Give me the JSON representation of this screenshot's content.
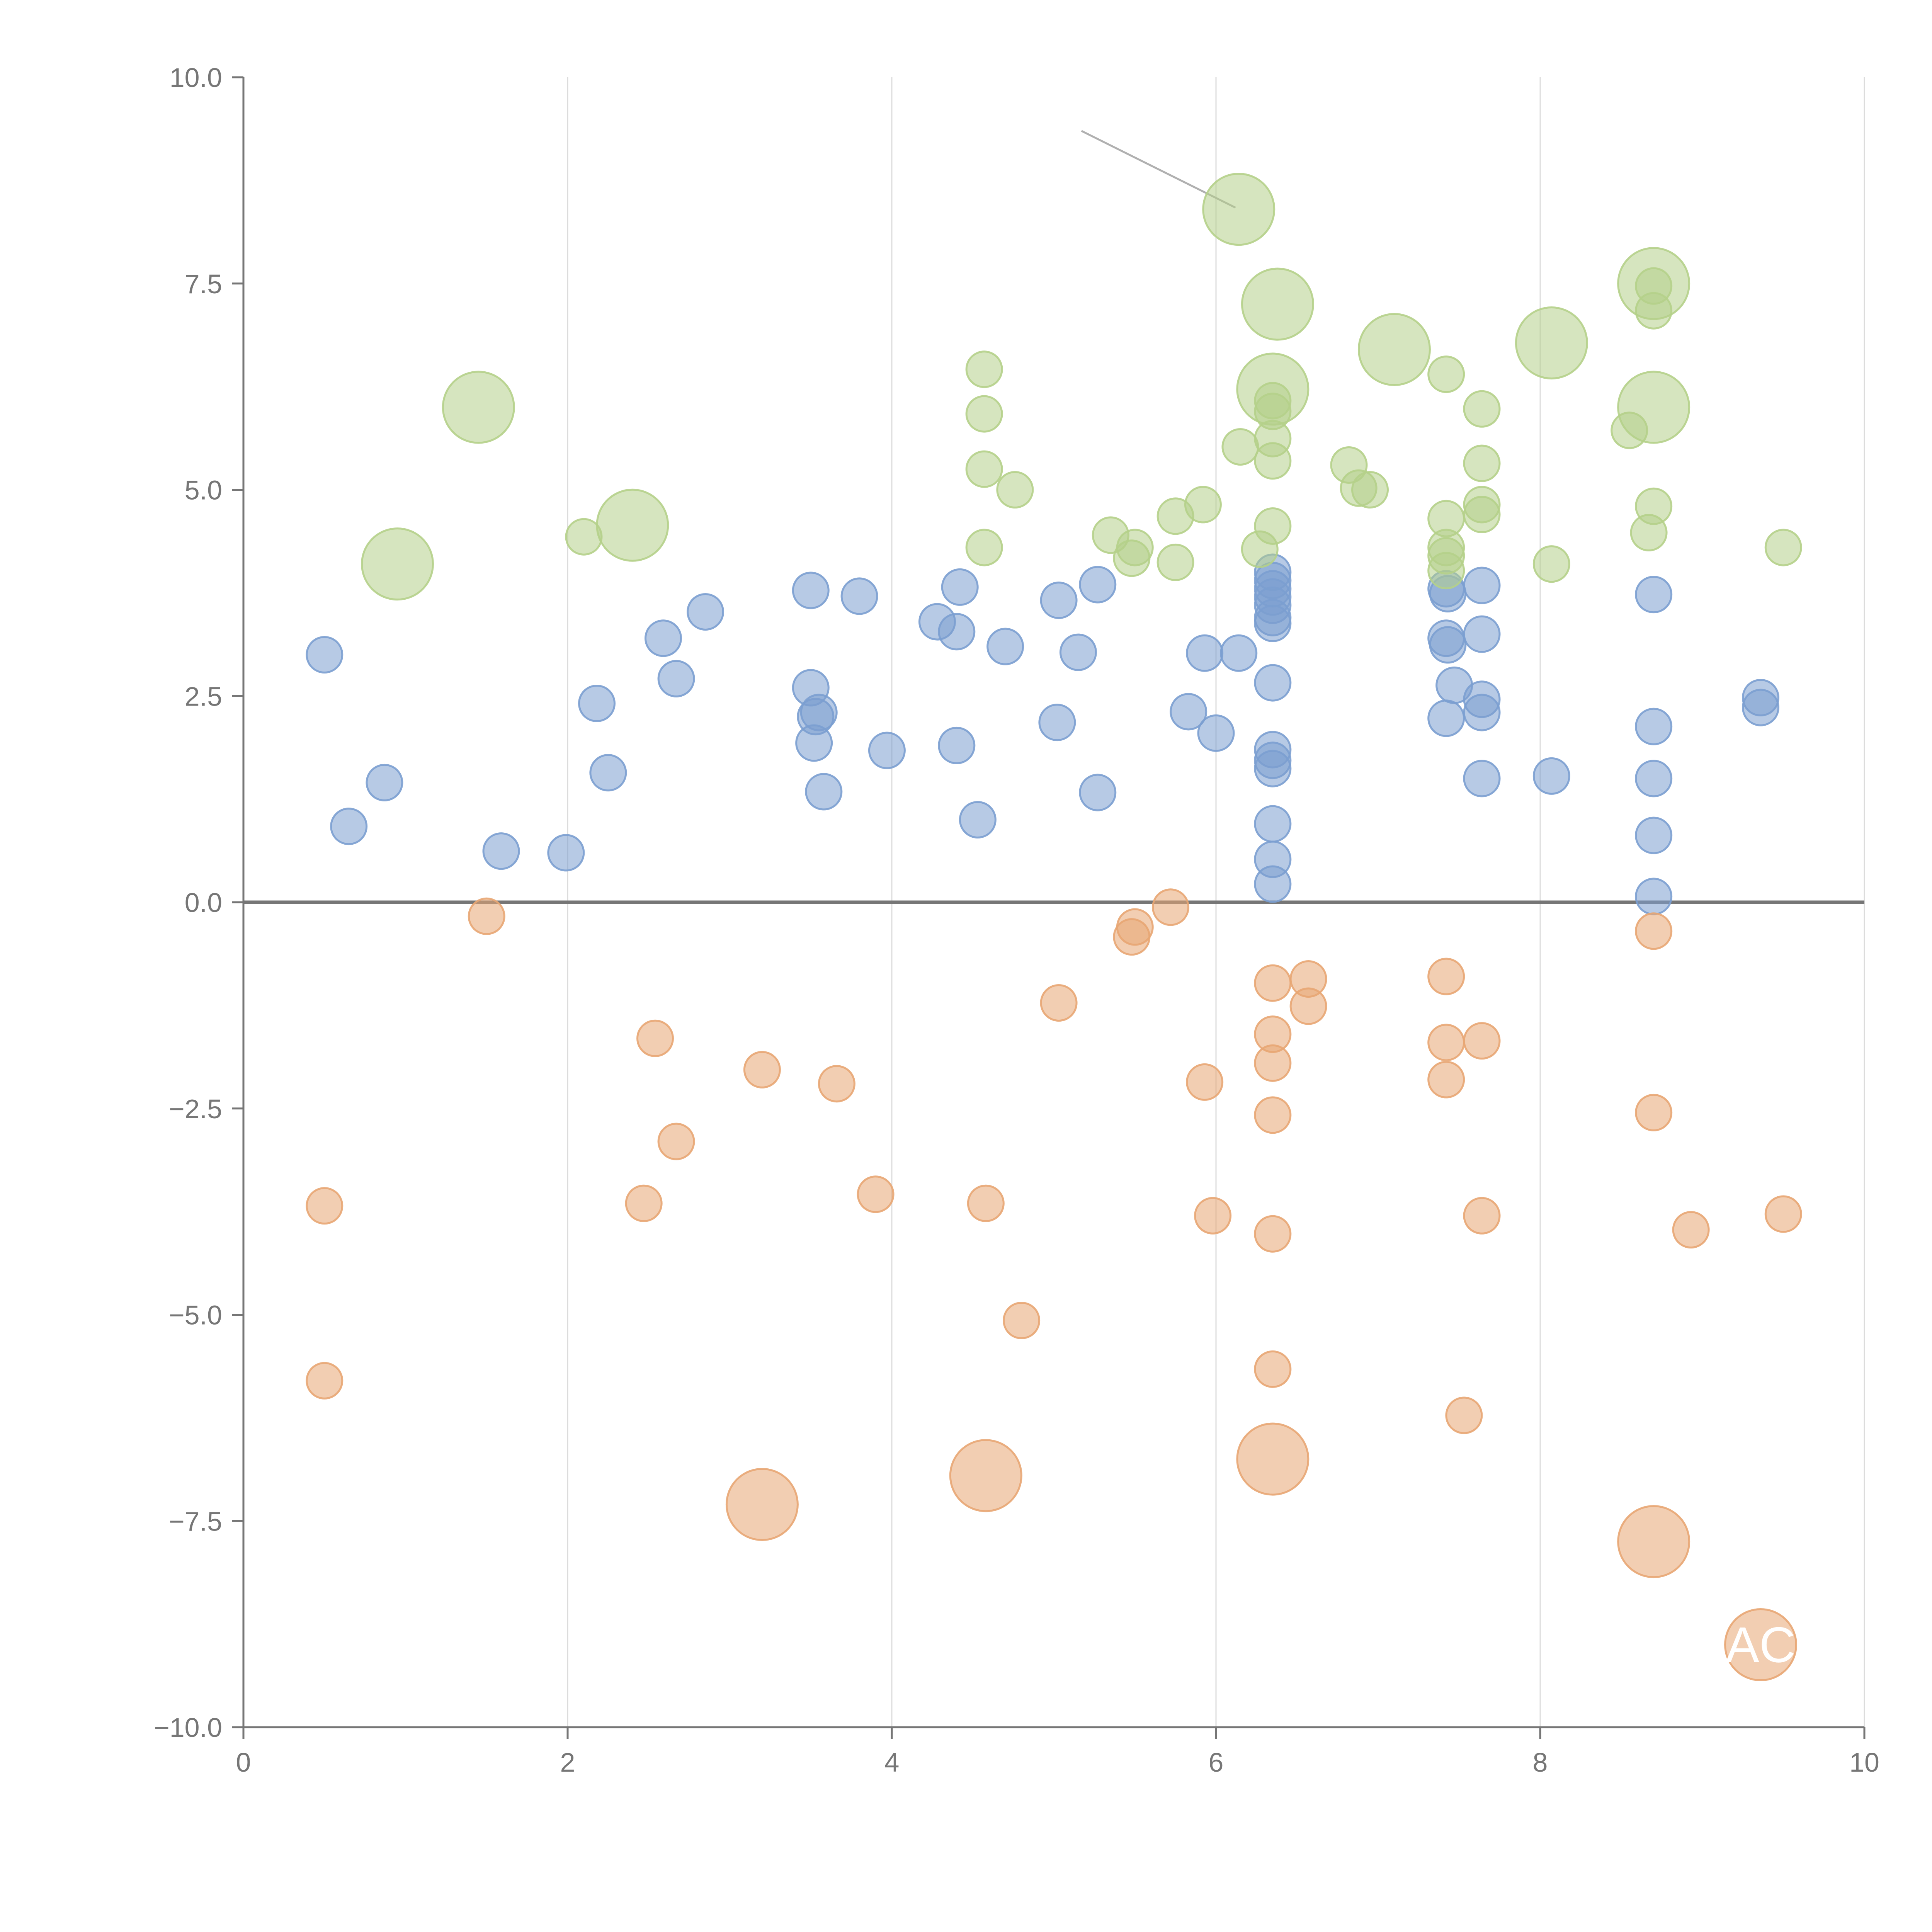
{
  "chart_data": {
    "type": "scatter",
    "title": "",
    "xlabel": "",
    "ylabel": "",
    "xlim": [
      0,
      10
    ],
    "ylim": [
      -10,
      10
    ],
    "x_ticks": [
      0,
      2,
      4,
      6,
      8,
      10
    ],
    "x_tick_labels": [
      "0",
      "2",
      "4",
      "6",
      "8",
      "10"
    ],
    "y_ticks": [
      10,
      7.5,
      5,
      2.5,
      0,
      -2.5,
      -5,
      -7.5,
      -10
    ],
    "y_tick_labels": [
      "10.0",
      "7.5",
      "5.0",
      "2.5",
      "0.0",
      "−2.5",
      "−5.0",
      "−7.5",
      "−10.0"
    ],
    "vertical_gridlines": true,
    "zero_line": true,
    "size_units": "relative (small=1, large=2)",
    "colors": {
      "blue": "#7b9fd0",
      "orange": "#e8a673",
      "green": "#b5d08a"
    },
    "series": [
      {
        "name": "blue",
        "color": "#7b9fd0",
        "points": [
          {
            "x": 0.5,
            "y": 3.0,
            "s": 1
          },
          {
            "x": 0.65,
            "y": 0.92,
            "s": 1
          },
          {
            "x": 0.87,
            "y": 1.45,
            "s": 1
          },
          {
            "x": 1.59,
            "y": 0.62,
            "s": 1
          },
          {
            "x": 1.99,
            "y": 0.6,
            "s": 1
          },
          {
            "x": 2.18,
            "y": 2.41,
            "s": 1
          },
          {
            "x": 2.25,
            "y": 1.57,
            "s": 1
          },
          {
            "x": 2.59,
            "y": 3.2,
            "s": 1
          },
          {
            "x": 2.67,
            "y": 2.71,
            "s": 1
          },
          {
            "x": 2.85,
            "y": 3.52,
            "s": 1
          },
          {
            "x": 3.5,
            "y": 3.78,
            "s": 1
          },
          {
            "x": 3.5,
            "y": 2.6,
            "s": 1
          },
          {
            "x": 3.53,
            "y": 2.25,
            "s": 1
          },
          {
            "x": 3.55,
            "y": 2.3,
            "s": 1
          },
          {
            "x": 3.52,
            "y": 1.93,
            "s": 1
          },
          {
            "x": 3.58,
            "y": 1.34,
            "s": 1
          },
          {
            "x": 3.8,
            "y": 3.71,
            "s": 1
          },
          {
            "x": 3.97,
            "y": 1.84,
            "s": 1
          },
          {
            "x": 4.28,
            "y": 3.4,
            "s": 1
          },
          {
            "x": 4.42,
            "y": 3.82,
            "s": 1
          },
          {
            "x": 4.4,
            "y": 3.28,
            "s": 1
          },
          {
            "x": 4.4,
            "y": 1.9,
            "s": 1
          },
          {
            "x": 4.53,
            "y": 1.0,
            "s": 1
          },
          {
            "x": 4.7,
            "y": 3.1,
            "s": 1
          },
          {
            "x": 5.03,
            "y": 3.66,
            "s": 1
          },
          {
            "x": 5.02,
            "y": 2.18,
            "s": 1
          },
          {
            "x": 5.15,
            "y": 3.03,
            "s": 1
          },
          {
            "x": 5.27,
            "y": 3.85,
            "s": 1
          },
          {
            "x": 5.27,
            "y": 1.33,
            "s": 1
          },
          {
            "x": 5.83,
            "y": 2.31,
            "s": 1
          },
          {
            "x": 5.93,
            "y": 3.02,
            "s": 1
          },
          {
            "x": 6.0,
            "y": 2.05,
            "s": 1
          },
          {
            "x": 6.14,
            "y": 3.02,
            "s": 1
          },
          {
            "x": 6.35,
            "y": 4.0,
            "s": 1
          },
          {
            "x": 6.35,
            "y": 3.9,
            "s": 1
          },
          {
            "x": 6.35,
            "y": 3.8,
            "s": 1
          },
          {
            "x": 6.35,
            "y": 3.7,
            "s": 1
          },
          {
            "x": 6.35,
            "y": 3.6,
            "s": 1
          },
          {
            "x": 6.35,
            "y": 3.45,
            "s": 1
          },
          {
            "x": 6.35,
            "y": 3.38,
            "s": 1
          },
          {
            "x": 6.35,
            "y": 2.66,
            "s": 1
          },
          {
            "x": 6.35,
            "y": 1.85,
            "s": 1
          },
          {
            "x": 6.35,
            "y": 1.72,
            "s": 1
          },
          {
            "x": 6.35,
            "y": 1.62,
            "s": 1
          },
          {
            "x": 6.35,
            "y": 0.95,
            "s": 1
          },
          {
            "x": 6.35,
            "y": 0.52,
            "s": 1
          },
          {
            "x": 6.35,
            "y": 0.22,
            "s": 1
          },
          {
            "x": 7.42,
            "y": 3.8,
            "s": 1
          },
          {
            "x": 7.43,
            "y": 3.74,
            "s": 1
          },
          {
            "x": 7.42,
            "y": 3.2,
            "s": 1
          },
          {
            "x": 7.43,
            "y": 3.12,
            "s": 1
          },
          {
            "x": 7.47,
            "y": 2.63,
            "s": 1
          },
          {
            "x": 7.42,
            "y": 2.23,
            "s": 1
          },
          {
            "x": 7.64,
            "y": 3.84,
            "s": 1
          },
          {
            "x": 7.64,
            "y": 3.25,
            "s": 1
          },
          {
            "x": 7.64,
            "y": 2.46,
            "s": 1
          },
          {
            "x": 7.64,
            "y": 2.3,
            "s": 1
          },
          {
            "x": 7.64,
            "y": 1.5,
            "s": 1
          },
          {
            "x": 8.07,
            "y": 1.53,
            "s": 1
          },
          {
            "x": 8.7,
            "y": 3.73,
            "s": 1
          },
          {
            "x": 8.7,
            "y": 2.13,
            "s": 1
          },
          {
            "x": 8.7,
            "y": 1.5,
            "s": 1
          },
          {
            "x": 8.7,
            "y": 0.81,
            "s": 1
          },
          {
            "x": 8.7,
            "y": 0.07,
            "s": 1
          },
          {
            "x": 9.36,
            "y": 2.48,
            "s": 1
          },
          {
            "x": 9.36,
            "y": 2.36,
            "s": 1
          }
        ]
      },
      {
        "name": "orange",
        "color": "#e8a673",
        "points": [
          {
            "x": 0.5,
            "y": -3.68,
            "s": 1
          },
          {
            "x": 0.5,
            "y": -5.8,
            "s": 1
          },
          {
            "x": 1.5,
            "y": -0.17,
            "s": 1
          },
          {
            "x": 2.47,
            "y": -3.65,
            "s": 1
          },
          {
            "x": 2.54,
            "y": -1.65,
            "s": 1
          },
          {
            "x": 2.67,
            "y": -2.9,
            "s": 1
          },
          {
            "x": 3.2,
            "y": -2.03,
            "s": 1
          },
          {
            "x": 3.2,
            "y": -7.3,
            "s": 2
          },
          {
            "x": 3.66,
            "y": -2.2,
            "s": 1
          },
          {
            "x": 3.9,
            "y": -3.54,
            "s": 1
          },
          {
            "x": 4.58,
            "y": -3.65,
            "s": 1
          },
          {
            "x": 4.58,
            "y": -6.95,
            "s": 2
          },
          {
            "x": 4.8,
            "y": -5.07,
            "s": 1
          },
          {
            "x": 5.03,
            "y": -1.22,
            "s": 1
          },
          {
            "x": 5.48,
            "y": -0.42,
            "s": 1
          },
          {
            "x": 5.5,
            "y": -0.3,
            "s": 1
          },
          {
            "x": 5.72,
            "y": -0.06,
            "s": 1
          },
          {
            "x": 5.93,
            "y": -2.18,
            "s": 1
          },
          {
            "x": 5.98,
            "y": -3.8,
            "s": 1
          },
          {
            "x": 6.35,
            "y": -0.98,
            "s": 1
          },
          {
            "x": 6.35,
            "y": -1.6,
            "s": 1
          },
          {
            "x": 6.35,
            "y": -1.95,
            "s": 1
          },
          {
            "x": 6.35,
            "y": -2.58,
            "s": 1
          },
          {
            "x": 6.35,
            "y": -4.02,
            "s": 1
          },
          {
            "x": 6.35,
            "y": -5.66,
            "s": 1
          },
          {
            "x": 6.35,
            "y": -6.75,
            "s": 2
          },
          {
            "x": 6.57,
            "y": -0.93,
            "s": 1
          },
          {
            "x": 6.57,
            "y": -1.26,
            "s": 1
          },
          {
            "x": 7.42,
            "y": -0.9,
            "s": 1
          },
          {
            "x": 7.42,
            "y": -1.7,
            "s": 1
          },
          {
            "x": 7.42,
            "y": -2.15,
            "s": 1
          },
          {
            "x": 7.53,
            "y": -6.22,
            "s": 1
          },
          {
            "x": 7.64,
            "y": -1.68,
            "s": 1
          },
          {
            "x": 7.64,
            "y": -3.8,
            "s": 1
          },
          {
            "x": 8.7,
            "y": -0.35,
            "s": 1
          },
          {
            "x": 8.7,
            "y": -2.55,
            "s": 1
          },
          {
            "x": 8.7,
            "y": -7.75,
            "s": 2
          },
          {
            "x": 8.93,
            "y": -3.97,
            "s": 1
          },
          {
            "x": 9.36,
            "y": -9.0,
            "s": 2
          },
          {
            "x": 9.5,
            "y": -3.78,
            "s": 1
          }
        ]
      },
      {
        "name": "green",
        "color": "#b5d08a",
        "points": [
          {
            "x": 0.95,
            "y": 4.1,
            "s": 2
          },
          {
            "x": 1.45,
            "y": 6.0,
            "s": 2
          },
          {
            "x": 2.1,
            "y": 4.43,
            "s": 1
          },
          {
            "x": 2.4,
            "y": 4.57,
            "s": 2
          },
          {
            "x": 4.57,
            "y": 6.46,
            "s": 1
          },
          {
            "x": 4.57,
            "y": 5.92,
            "s": 1
          },
          {
            "x": 4.57,
            "y": 5.25,
            "s": 1
          },
          {
            "x": 4.57,
            "y": 4.3,
            "s": 1
          },
          {
            "x": 4.76,
            "y": 5.0,
            "s": 1
          },
          {
            "x": 5.35,
            "y": 4.45,
            "s": 1
          },
          {
            "x": 5.5,
            "y": 4.3,
            "s": 1
          },
          {
            "x": 5.48,
            "y": 4.17,
            "s": 1
          },
          {
            "x": 5.75,
            "y": 4.68,
            "s": 1
          },
          {
            "x": 5.75,
            "y": 4.12,
            "s": 1
          },
          {
            "x": 5.92,
            "y": 4.82,
            "s": 1
          },
          {
            "x": 6.14,
            "y": 8.4,
            "s": 2
          },
          {
            "x": 6.15,
            "y": 5.52,
            "s": 1
          },
          {
            "x": 6.27,
            "y": 4.28,
            "s": 1
          },
          {
            "x": 6.38,
            "y": 7.25,
            "s": 2
          },
          {
            "x": 6.35,
            "y": 6.22,
            "s": 2
          },
          {
            "x": 6.35,
            "y": 6.08,
            "s": 1
          },
          {
            "x": 6.35,
            "y": 5.95,
            "s": 1
          },
          {
            "x": 6.35,
            "y": 5.62,
            "s": 1
          },
          {
            "x": 6.35,
            "y": 5.35,
            "s": 1
          },
          {
            "x": 6.35,
            "y": 4.56,
            "s": 1
          },
          {
            "x": 6.82,
            "y": 5.3,
            "s": 1
          },
          {
            "x": 6.88,
            "y": 5.02,
            "s": 1
          },
          {
            "x": 6.95,
            "y": 5.0,
            "s": 1
          },
          {
            "x": 7.1,
            "y": 6.7,
            "s": 2
          },
          {
            "x": 7.42,
            "y": 6.4,
            "s": 1
          },
          {
            "x": 7.42,
            "y": 4.65,
            "s": 1
          },
          {
            "x": 7.42,
            "y": 4.3,
            "s": 1
          },
          {
            "x": 7.42,
            "y": 4.2,
            "s": 1
          },
          {
            "x": 7.42,
            "y": 4.02,
            "s": 1
          },
          {
            "x": 7.64,
            "y": 5.98,
            "s": 1
          },
          {
            "x": 7.64,
            "y": 5.32,
            "s": 1
          },
          {
            "x": 7.64,
            "y": 4.82,
            "s": 1
          },
          {
            "x": 7.64,
            "y": 4.7,
            "s": 1
          },
          {
            "x": 8.07,
            "y": 6.78,
            "s": 2
          },
          {
            "x": 8.07,
            "y": 4.1,
            "s": 1
          },
          {
            "x": 8.55,
            "y": 5.72,
            "s": 1
          },
          {
            "x": 8.7,
            "y": 7.5,
            "s": 2
          },
          {
            "x": 8.7,
            "y": 7.47,
            "s": 1
          },
          {
            "x": 8.7,
            "y": 7.17,
            "s": 1
          },
          {
            "x": 8.7,
            "y": 6.0,
            "s": 2
          },
          {
            "x": 8.7,
            "y": 4.8,
            "s": 1
          },
          {
            "x": 8.67,
            "y": 4.48,
            "s": 1
          },
          {
            "x": 9.5,
            "y": 4.3,
            "s": 1
          }
        ]
      }
    ],
    "annotations": [
      {
        "type": "callout-line",
        "from": [
          5.17,
          9.35
        ],
        "to": [
          6.12,
          8.42
        ]
      }
    ],
    "labels": [
      {
        "text": "AC",
        "x": 9.36,
        "y": -9.0,
        "color": "#ffffff"
      }
    ]
  }
}
